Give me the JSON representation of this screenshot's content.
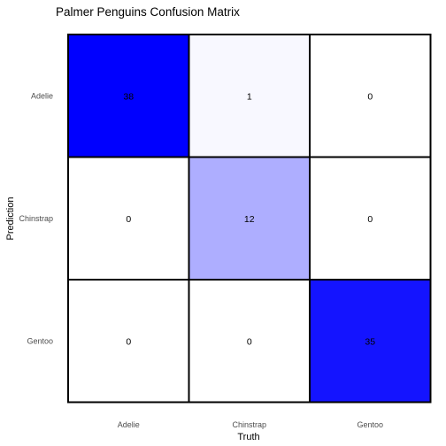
{
  "chart_data": {
    "type": "heatmap",
    "title": "Palmer Penguins Confusion Matrix",
    "xlabel": "Truth",
    "ylabel": "Prediction",
    "x_categories": [
      "Adelie",
      "Chinstrap",
      "Gentoo"
    ],
    "y_categories": [
      "Adelie",
      "Chinstrap",
      "Gentoo"
    ],
    "values": [
      [
        38,
        1,
        0
      ],
      [
        0,
        12,
        0
      ],
      [
        0,
        0,
        35
      ]
    ],
    "color_low": "#ffffff",
    "color_high": "#0000ff",
    "grid": false
  }
}
